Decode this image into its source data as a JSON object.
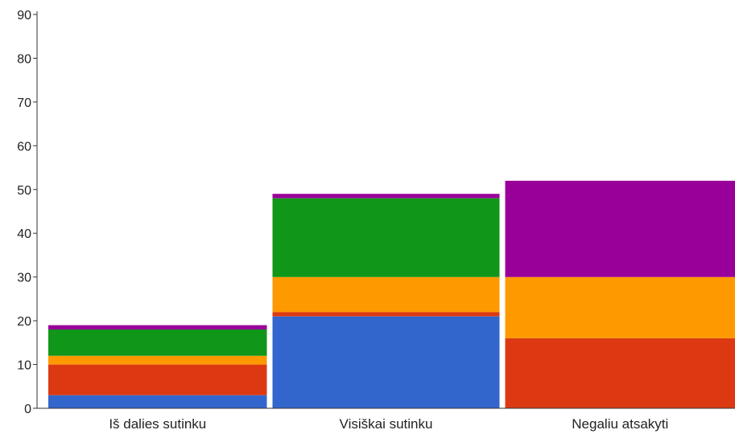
{
  "chart_data": {
    "type": "bar",
    "stacked": true,
    "categories": [
      "Iš dalies sutinku",
      "Visiškai sutinku",
      "Negaliu atsakyti"
    ],
    "series": [
      {
        "color": "#3366cc",
        "values": [
          3,
          21,
          0
        ]
      },
      {
        "color": "#dc3912",
        "values": [
          7,
          1,
          16
        ]
      },
      {
        "color": "#ff9900",
        "values": [
          2,
          8,
          14
        ]
      },
      {
        "color": "#109618",
        "values": [
          6,
          18,
          0
        ]
      },
      {
        "color": "#990099",
        "values": [
          1,
          1,
          22
        ]
      }
    ],
    "y_ticks": [
      0,
      10,
      20,
      30,
      40,
      50,
      60,
      70,
      80,
      90
    ],
    "ylim": [
      0,
      90
    ],
    "title": "",
    "xlabel": "",
    "ylabel": "",
    "grid": false,
    "legend": "none"
  }
}
